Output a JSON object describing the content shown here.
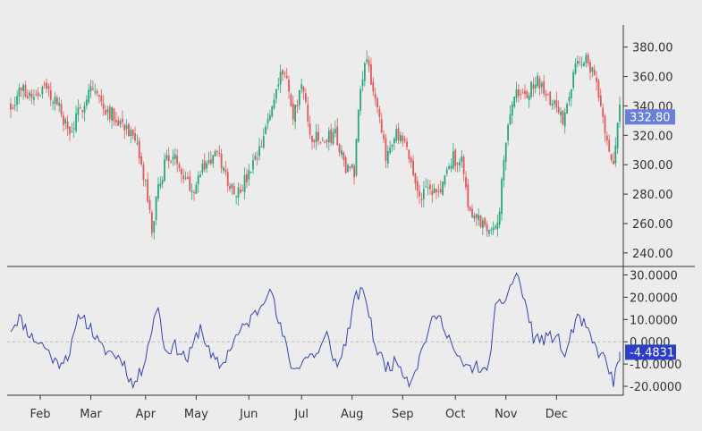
{
  "colors": {
    "background": "#ececec",
    "up": "#2ba67a",
    "down": "#e15859",
    "oscillator": "#3544b4",
    "price_tag_bg": "#6a7fd8",
    "osc_tag_bg": "#2c3fc4",
    "axis": "#333333",
    "zero_line": "#b8b8b8"
  },
  "chart_data": [
    {
      "type": "candlestick",
      "panel": "price",
      "title": "",
      "ylim": [
        232,
        395
      ],
      "y_ticks": [
        "240.00",
        "260.00",
        "280.00",
        "300.00",
        "320.00",
        "340.00",
        "360.00",
        "380.00"
      ],
      "y_tick_values": [
        240,
        260,
        280,
        300,
        320,
        340,
        360,
        380
      ],
      "last_value_label": "332.80",
      "last_value": 332.8,
      "grid": false,
      "anchors": [
        [
          0,
          340
        ],
        [
          5,
          352
        ],
        [
          10,
          347
        ],
        [
          16,
          352
        ],
        [
          22,
          342
        ],
        [
          28,
          320
        ],
        [
          32,
          334
        ],
        [
          38,
          354
        ],
        [
          44,
          340
        ],
        [
          50,
          332
        ],
        [
          55,
          326
        ],
        [
          60,
          310
        ],
        [
          64,
          286
        ],
        [
          67,
          255
        ],
        [
          70,
          283
        ],
        [
          74,
          306
        ],
        [
          80,
          301
        ],
        [
          86,
          283
        ],
        [
          92,
          300
        ],
        [
          98,
          307
        ],
        [
          104,
          286
        ],
        [
          108,
          282
        ],
        [
          112,
          290
        ],
        [
          118,
          308
        ],
        [
          124,
          340
        ],
        [
          128,
          365
        ],
        [
          131,
          358
        ],
        [
          134,
          330
        ],
        [
          138,
          356
        ],
        [
          142,
          320
        ],
        [
          148,
          315
        ],
        [
          154,
          322
        ],
        [
          158,
          300
        ],
        [
          163,
          296
        ],
        [
          166,
          356
        ],
        [
          169,
          375
        ],
        [
          173,
          343
        ],
        [
          178,
          305
        ],
        [
          182,
          322
        ],
        [
          187,
          312
        ],
        [
          190,
          302
        ],
        [
          193,
          280
        ],
        [
          198,
          282
        ],
        [
          203,
          280
        ],
        [
          210,
          305
        ],
        [
          214,
          302
        ],
        [
          218,
          267
        ],
        [
          222,
          262
        ],
        [
          226,
          258
        ],
        [
          230,
          260
        ],
        [
          232,
          270
        ],
        [
          236,
          332
        ],
        [
          240,
          348
        ],
        [
          245,
          347
        ],
        [
          250,
          358
        ],
        [
          254,
          345
        ],
        [
          258,
          343
        ],
        [
          262,
          330
        ],
        [
          266,
          356
        ],
        [
          270,
          372
        ],
        [
          274,
          372
        ],
        [
          278,
          352
        ],
        [
          282,
          326
        ],
        [
          286,
          300
        ],
        [
          289,
          340
        ]
      ],
      "n_candles": 290,
      "seed": 7
    },
    {
      "type": "line",
      "panel": "oscillator",
      "title": "",
      "ylim": [
        -24,
        33
      ],
      "y_ticks": [
        "-20.0000",
        "-10.0000",
        "0.0000",
        "10.0000",
        "20.0000",
        "30.0000"
      ],
      "y_tick_values": [
        -20,
        -10,
        0,
        10,
        20,
        30
      ],
      "last_value_label": "-4.4831",
      "last_value": -4.4831,
      "zero_line": true,
      "anchors": [
        [
          0,
          6
        ],
        [
          4,
          11
        ],
        [
          10,
          2
        ],
        [
          16,
          -2
        ],
        [
          22,
          -10
        ],
        [
          28,
          -5
        ],
        [
          33,
          13
        ],
        [
          38,
          6
        ],
        [
          43,
          -3
        ],
        [
          48,
          -5
        ],
        [
          53,
          -8
        ],
        [
          58,
          -20
        ],
        [
          62,
          -13
        ],
        [
          66,
          2
        ],
        [
          70,
          17
        ],
        [
          73,
          -4
        ],
        [
          78,
          -2
        ],
        [
          84,
          -8
        ],
        [
          90,
          7
        ],
        [
          95,
          -7
        ],
        [
          100,
          -11
        ],
        [
          106,
          1
        ],
        [
          112,
          8
        ],
        [
          118,
          15
        ],
        [
          123,
          26
        ],
        [
          126,
          12
        ],
        [
          130,
          0
        ],
        [
          134,
          -13
        ],
        [
          140,
          -7
        ],
        [
          146,
          -5
        ],
        [
          150,
          3
        ],
        [
          155,
          -12
        ],
        [
          160,
          4
        ],
        [
          164,
          21
        ],
        [
          168,
          22
        ],
        [
          173,
          -2
        ],
        [
          178,
          -11
        ],
        [
          184,
          -9
        ],
        [
          189,
          -18
        ],
        [
          193,
          -10
        ],
        [
          198,
          5
        ],
        [
          202,
          12
        ],
        [
          206,
          7
        ],
        [
          212,
          -8
        ],
        [
          217,
          -12
        ],
        [
          222,
          -11
        ],
        [
          226,
          -15
        ],
        [
          230,
          14
        ],
        [
          235,
          20
        ],
        [
          240,
          31
        ],
        [
          244,
          18
        ],
        [
          248,
          2
        ],
        [
          253,
          1
        ],
        [
          259,
          3
        ],
        [
          263,
          -7
        ],
        [
          268,
          10
        ],
        [
          272,
          8
        ],
        [
          277,
          -2
        ],
        [
          282,
          -8
        ],
        [
          286,
          -18
        ],
        [
          290,
          -4.4831
        ]
      ],
      "n_points": 291,
      "seed": 11
    }
  ],
  "x_axis": {
    "labels": [
      "Feb",
      "Mar",
      "Apr",
      "May",
      "Jun",
      "Jul",
      "Aug",
      "Sep",
      "Oct",
      "Nov",
      "Dec"
    ],
    "label_index": [
      14,
      38,
      64,
      88,
      113,
      138,
      162,
      186,
      211,
      235,
      259
    ]
  }
}
